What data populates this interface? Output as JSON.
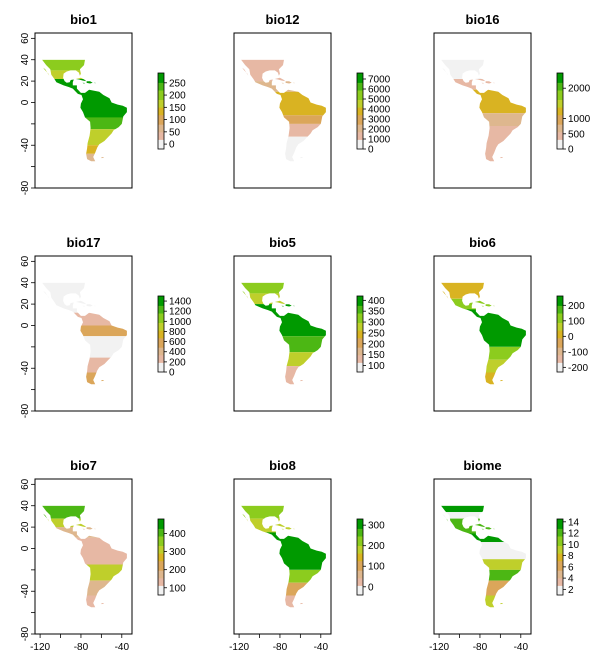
{
  "chart_data": [
    {
      "type": "heatmap",
      "title": "bio1",
      "legend_ticks": [
        "0",
        "50",
        "100",
        "150",
        "200",
        "250"
      ],
      "legend_range": [
        -20,
        290
      ],
      "palette": "terrain",
      "xlim": [
        -125,
        -30
      ],
      "ylim": [
        -80,
        65
      ],
      "grid": "off",
      "x_ticks": [
        "-120",
        "-80",
        "-40"
      ],
      "y_ticks": [
        "60",
        "40",
        "20",
        "0",
        "-40",
        "-80"
      ]
    },
    {
      "type": "heatmap",
      "title": "bio12",
      "legend_ticks": [
        "0",
        "1000",
        "2000",
        "3000",
        "4000",
        "5000",
        "6000",
        "7000"
      ],
      "legend_range": [
        0,
        7600
      ],
      "palette": "terrain"
    },
    {
      "type": "heatmap",
      "title": "bio16",
      "legend_ticks": [
        "0",
        "500",
        "1000",
        "2000"
      ],
      "legend_range": [
        0,
        2500
      ],
      "palette": "terrain"
    },
    {
      "type": "heatmap",
      "title": "bio17",
      "legend_ticks": [
        "0",
        "200",
        "400",
        "600",
        "800",
        "1000",
        "1200",
        "1400"
      ],
      "legend_range": [
        0,
        1500
      ],
      "palette": "terrain"
    },
    {
      "type": "heatmap",
      "title": "bio5",
      "legend_ticks": [
        "100",
        "150",
        "200",
        "250",
        "300",
        "350",
        "400"
      ],
      "legend_range": [
        70,
        420
      ],
      "palette": "terrain"
    },
    {
      "type": "heatmap",
      "title": "bio6",
      "legend_ticks": [
        "-200",
        "-100",
        "0",
        "100",
        "200"
      ],
      "legend_range": [
        -230,
        260
      ],
      "palette": "terrain"
    },
    {
      "type": "heatmap",
      "title": "bio7",
      "legend_ticks": [
        "100",
        "200",
        "300",
        "400"
      ],
      "legend_range": [
        60,
        480
      ],
      "palette": "terrain"
    },
    {
      "type": "heatmap",
      "title": "bio8",
      "legend_ticks": [
        "0",
        "100",
        "200",
        "300"
      ],
      "legend_range": [
        -40,
        330
      ],
      "palette": "terrain"
    },
    {
      "type": "heatmap",
      "title": "biome",
      "legend_ticks": [
        "2",
        "4",
        "6",
        "8",
        "10",
        "12",
        "14"
      ],
      "legend_range": [
        1,
        14.5
      ],
      "palette": "terrain"
    }
  ],
  "colors": {
    "low": "#f2f2f2",
    "pink": "#e7b8a4",
    "tan": "#deb78e",
    "orange": "#dba65a",
    "gold": "#d9b322",
    "yellow": "#bfcf2b",
    "lime": "#8ccc1e",
    "green": "#4cb714",
    "dark": "#009a00",
    "frame": "#000000"
  }
}
